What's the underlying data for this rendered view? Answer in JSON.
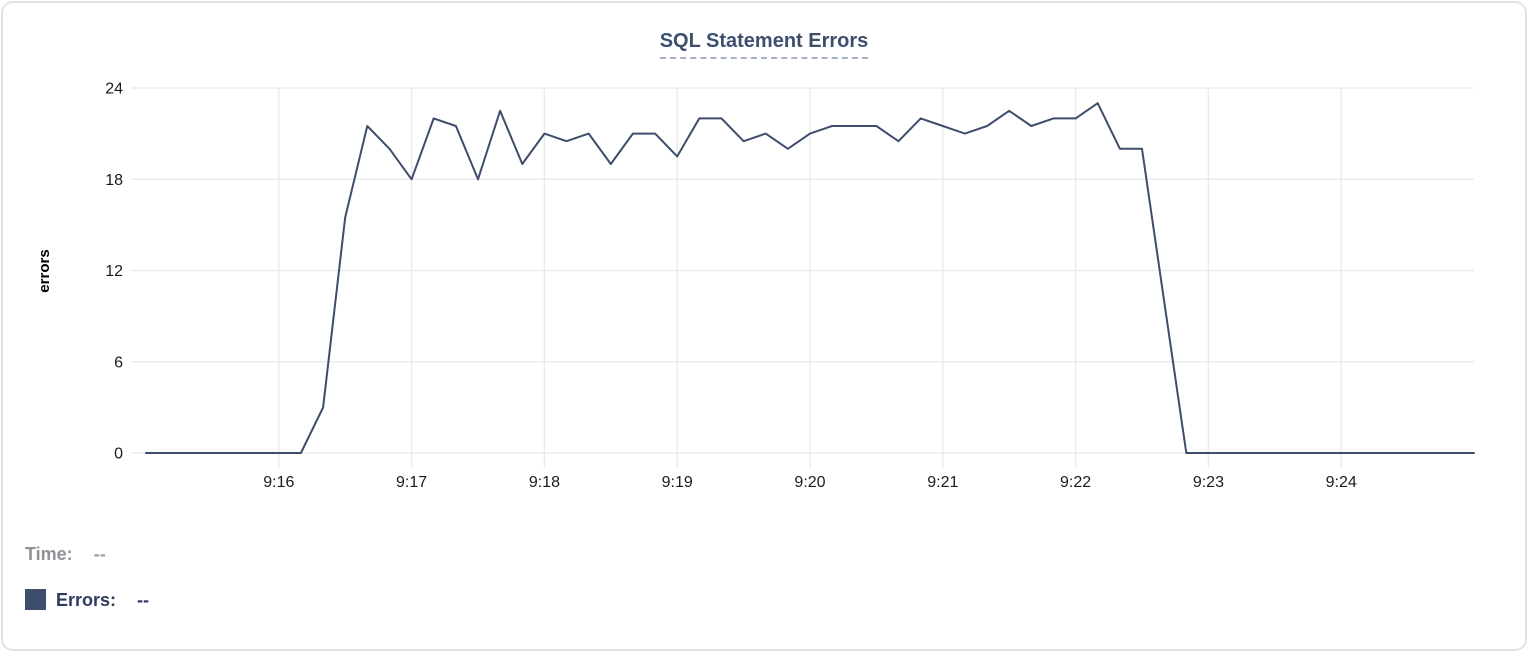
{
  "card": {
    "title": "SQL Statement Errors"
  },
  "readout": {
    "time_label": "Time:",
    "time_value": "--",
    "errors_label": "Errors:",
    "errors_value": "--"
  },
  "colors": {
    "card_bg": "#ffffff",
    "card_border": "#e2e3e7",
    "title": "#3e4f6e",
    "title_underline": "#a6b0c6",
    "line": "#3e4d6b",
    "grid": "#ebebee",
    "axis_text": "#1b1b1d",
    "time_label": "#8f9197",
    "time_value": "#9a9ca1",
    "errors_label": "#2c3b5e",
    "swatch": "#3e4e6c"
  },
  "chart_data": {
    "type": "line",
    "title": "SQL Statement Errors",
    "xlabel": "",
    "ylabel": "errors",
    "ylim": [
      0,
      24
    ],
    "y_ticks": [
      0,
      6,
      12,
      18,
      24
    ],
    "x_ticks": [
      "9:16",
      "9:17",
      "9:18",
      "9:19",
      "9:20",
      "9:21",
      "9:22",
      "9:23",
      "9:24"
    ],
    "x_range": [
      "9:15:00",
      "9:25:00"
    ],
    "sample_interval_seconds": 10,
    "grid": true,
    "legend_position": "bottom-left",
    "series": [
      {
        "name": "Errors",
        "color": "#3e4d6b",
        "times": [
          "9:15:00",
          "9:15:10",
          "9:15:20",
          "9:15:30",
          "9:15:40",
          "9:15:50",
          "9:16:00",
          "9:16:10",
          "9:16:20",
          "9:16:30",
          "9:16:40",
          "9:16:50",
          "9:17:00",
          "9:17:10",
          "9:17:20",
          "9:17:30",
          "9:17:40",
          "9:17:50",
          "9:18:00",
          "9:18:10",
          "9:18:20",
          "9:18:30",
          "9:18:40",
          "9:18:50",
          "9:19:00",
          "9:19:10",
          "9:19:20",
          "9:19:30",
          "9:19:40",
          "9:19:50",
          "9:20:00",
          "9:20:10",
          "9:20:20",
          "9:20:30",
          "9:20:40",
          "9:20:50",
          "9:21:00",
          "9:21:10",
          "9:21:20",
          "9:21:30",
          "9:21:40",
          "9:21:50",
          "9:22:00",
          "9:22:10",
          "9:22:20",
          "9:22:30",
          "9:22:40",
          "9:22:50",
          "9:23:00",
          "9:23:10",
          "9:23:20",
          "9:23:30",
          "9:23:40",
          "9:23:50",
          "9:24:00",
          "9:24:10",
          "9:24:20",
          "9:24:30",
          "9:24:40",
          "9:24:50",
          "9:25:00"
        ],
        "values": [
          0,
          0,
          0,
          0,
          0,
          0,
          0,
          0,
          3,
          15.5,
          21.5,
          20,
          18,
          22,
          21.5,
          18,
          22.5,
          19,
          21,
          20.5,
          21,
          19,
          21,
          21,
          19.5,
          22,
          22,
          20.5,
          21,
          20,
          21,
          21.5,
          21.5,
          21.5,
          20.5,
          22,
          21.5,
          21,
          21.5,
          22.5,
          21.5,
          22,
          22,
          23,
          20,
          20,
          10,
          0,
          0,
          0,
          0,
          0,
          0,
          0,
          0,
          0,
          0,
          0,
          0,
          0,
          0
        ]
      }
    ]
  }
}
